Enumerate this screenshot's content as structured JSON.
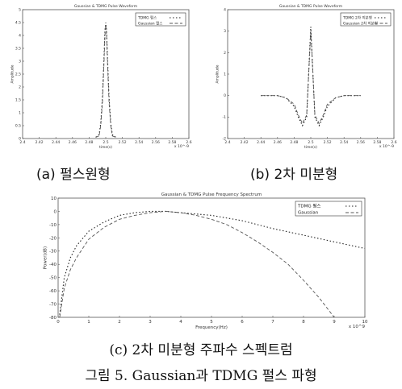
{
  "captions": {
    "a": "(a) 펄스원형",
    "b": "(b) 2차 미분형",
    "c": "(c) 2차 미분형 주파수 스펙트럼",
    "figure": "그림 5. Gaussian과 TDMG 펄스 파형"
  },
  "chart_data": [
    {
      "type": "line",
      "title": "Gaussian & TDMG Pulse Waveform",
      "xlabel": "time(s)",
      "ylabel": "Amplitude",
      "xlim": [
        2.0,
        3.0
      ],
      "ylim": [
        0,
        5
      ],
      "x_ticks": [
        "2.4",
        "2.42",
        "2.44",
        "2.46",
        "2.48",
        "2.5",
        "2.52",
        "2.54",
        "2.56",
        "2.58",
        "2.6"
      ],
      "x_exponent": "x 10^-9",
      "y_ticks": [
        "0",
        "0.5",
        "1",
        "1.5",
        "2",
        "2.5",
        "3",
        "3.5",
        "4",
        "4.5",
        "5"
      ],
      "legend": [
        "TDMG 펄스",
        "Gaussian 펄스"
      ],
      "legend_position": "top-right",
      "series": [
        {
          "name": "TDMG 펄스",
          "x": [
            2.44,
            2.46,
            2.47,
            2.48,
            2.49,
            2.495,
            2.5,
            2.505,
            2.51,
            2.52,
            2.53,
            2.54,
            2.56
          ],
          "y": [
            0.05,
            0.15,
            0.6,
            1.6,
            3.2,
            4.2,
            4.5,
            4.2,
            3.2,
            1.6,
            0.6,
            0.15,
            0.05
          ]
        },
        {
          "name": "Gaussian 펄스",
          "x": [
            2.44,
            2.46,
            2.47,
            2.48,
            2.49,
            2.495,
            2.5,
            2.505,
            2.51,
            2.52,
            2.53,
            2.54,
            2.56
          ],
          "y": [
            0.05,
            0.1,
            0.5,
            1.4,
            3.0,
            4.0,
            4.4,
            4.0,
            3.0,
            1.4,
            0.5,
            0.1,
            0.05
          ]
        }
      ]
    },
    {
      "type": "line",
      "title": "Gaussian & TDMG Pulse Waveform",
      "xlabel": "time(s)",
      "ylabel": "Amplitude",
      "xlim": [
        2.4,
        2.6
      ],
      "ylim": [
        -2,
        4
      ],
      "x_ticks": [
        "2.4",
        "2.42",
        "2.44",
        "2.46",
        "2.48",
        "2.5",
        "2.52",
        "2.54",
        "2.56",
        "2.58",
        "2.6"
      ],
      "x_exponent": "x 10^-9",
      "y_ticks": [
        "4",
        "3",
        "2",
        "1",
        "0",
        "-1",
        "-2"
      ],
      "legend": [
        "TDMG 2차 미분형",
        "Gaussian 2차 미분형"
      ],
      "legend_position": "top-right",
      "series": [
        {
          "name": "TDMG 2차 미분형",
          "x": [
            2.44,
            2.46,
            2.47,
            2.48,
            2.485,
            2.49,
            2.495,
            2.5,
            2.505,
            2.51,
            2.515,
            2.52,
            2.53,
            2.54,
            2.56
          ],
          "y": [
            0,
            0,
            -0.1,
            -0.5,
            -1.0,
            -1.4,
            -1.0,
            3.2,
            -1.0,
            -1.4,
            -1.0,
            -0.5,
            -0.1,
            0,
            0
          ]
        },
        {
          "name": "Gaussian 2차 미분형",
          "x": [
            2.44,
            2.46,
            2.47,
            2.48,
            2.485,
            2.49,
            2.495,
            2.5,
            2.505,
            2.51,
            2.515,
            2.52,
            2.53,
            2.54,
            2.56
          ],
          "y": [
            0,
            0,
            -0.1,
            -0.4,
            -0.9,
            -1.3,
            -0.9,
            3.0,
            -0.9,
            -1.3,
            -0.9,
            -0.4,
            -0.1,
            0,
            0
          ]
        }
      ]
    },
    {
      "type": "line",
      "title": "Gaussian & TDMG Pulse Frequency Spectrum",
      "xlabel": "Frequency(Hz)",
      "ylabel": "Power(dB)",
      "xlim": [
        0,
        10
      ],
      "ylim": [
        -80,
        10
      ],
      "x_ticks": [
        "0",
        "1",
        "2",
        "3",
        "4",
        "5",
        "6",
        "7",
        "8",
        "9",
        "10"
      ],
      "x_exponent": "x 10^9",
      "y_ticks": [
        "10",
        "0",
        "-10",
        "-20",
        "-30",
        "-40",
        "-50",
        "-60",
        "-70",
        "-80"
      ],
      "legend": [
        "TDMG 펄스",
        "Gaussian"
      ],
      "legend_position": "top-right",
      "series": [
        {
          "name": "TDMG 펄스",
          "x": [
            0.05,
            0.2,
            0.4,
            0.6,
            1.0,
            1.5,
            2.0,
            2.5,
            3.0,
            3.5,
            4.0,
            5.0,
            6.0,
            7.0,
            8.0,
            9.0,
            10.0
          ],
          "y": [
            -78,
            -50,
            -35,
            -26,
            -15,
            -8,
            -3,
            -1,
            0,
            0,
            -1,
            -3,
            -7,
            -13,
            -18,
            -23,
            -28
          ]
        },
        {
          "name": "Gaussian",
          "x": [
            0.05,
            0.2,
            0.4,
            0.6,
            1.0,
            1.5,
            2.0,
            2.5,
            3.0,
            3.5,
            4.0,
            4.5,
            5.0,
            5.5,
            6.0,
            6.5,
            7.0,
            7.5,
            8.0,
            8.5,
            9.0
          ],
          "y": [
            -80,
            -58,
            -44,
            -35,
            -21,
            -12,
            -6,
            -3,
            -1,
            0,
            -1,
            -3,
            -6,
            -10,
            -16,
            -23,
            -31,
            -40,
            -52,
            -65,
            -80
          ]
        }
      ]
    }
  ]
}
